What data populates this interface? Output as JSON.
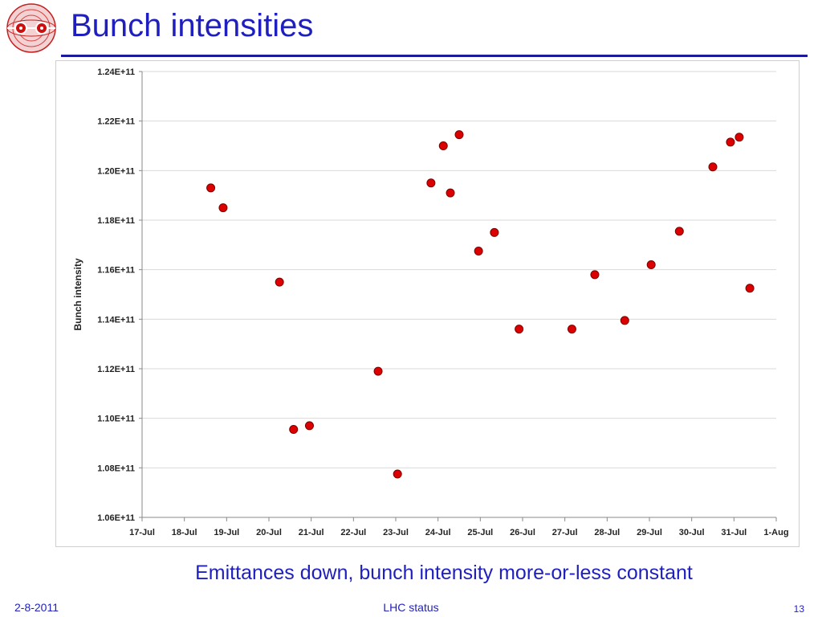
{
  "slide": {
    "title": "Bunch intensities",
    "caption": "Emittances down, bunch intensity more-or-less constant",
    "footer_left": "2-8-2011",
    "footer_center": "LHC status",
    "page_number": "13"
  },
  "colors": {
    "title": "#1f1fbf",
    "rule": "#1a1a9a",
    "point_fill": "#dd0000",
    "grid": "#d9d9d9"
  },
  "chart_data": {
    "type": "scatter",
    "title": "",
    "xlabel": "",
    "ylabel": "Bunch intensity",
    "x_tick_labels": [
      "17-Jul",
      "18-Jul",
      "19-Jul",
      "20-Jul",
      "21-Jul",
      "22-Jul",
      "23-Jul",
      "24-Jul",
      "25-Jul",
      "26-Jul",
      "27-Jul",
      "28-Jul",
      "29-Jul",
      "30-Jul",
      "31-Jul",
      "1-Aug"
    ],
    "y_tick_labels": [
      "1.24E+11",
      "1.22E+11",
      "1.20E+11",
      "1.18E+11",
      "1.16E+11",
      "1.14E+11",
      "1.12E+11",
      "1.10E+11",
      "1.08E+11",
      "1.06E+11"
    ],
    "xlim": [
      "2011-07-17",
      "2011-08-01"
    ],
    "ylim": [
      106000000000.0,
      124000000000.0
    ],
    "grid": true,
    "legend": "none",
    "series": [
      {
        "points": [
          {
            "x": "2011-07-18 15:00",
            "y": 119300000000.0
          },
          {
            "x": "2011-07-18 22:00",
            "y": 118500000000.0
          },
          {
            "x": "2011-07-20 06:00",
            "y": 115500000000.0
          },
          {
            "x": "2011-07-20 14:00",
            "y": 109550000000.0
          },
          {
            "x": "2011-07-20 23:00",
            "y": 109700000000.0
          },
          {
            "x": "2011-07-22 14:00",
            "y": 111900000000.0
          },
          {
            "x": "2011-07-23 01:00",
            "y": 107750000000.0
          },
          {
            "x": "2011-07-23 20:00",
            "y": 119500000000.0
          },
          {
            "x": "2011-07-24 03:00",
            "y": 121000000000.0
          },
          {
            "x": "2011-07-24 07:00",
            "y": 119100000000.0
          },
          {
            "x": "2011-07-24 12:00",
            "y": 121450000000.0
          },
          {
            "x": "2011-07-24 23:00",
            "y": 116750000000.0
          },
          {
            "x": "2011-07-25 08:00",
            "y": 117500000000.0
          },
          {
            "x": "2011-07-25 22:00",
            "y": 113600000000.0
          },
          {
            "x": "2011-07-27 04:00",
            "y": 113600000000.0
          },
          {
            "x": "2011-07-27 17:00",
            "y": 115800000000.0
          },
          {
            "x": "2011-07-28 10:00",
            "y": 113950000000.0
          },
          {
            "x": "2011-07-29 01:00",
            "y": 116200000000.0
          },
          {
            "x": "2011-07-29 17:00",
            "y": 117550000000.0
          },
          {
            "x": "2011-07-30 12:00",
            "y": 120150000000.0
          },
          {
            "x": "2011-07-30 22:00",
            "y": 121150000000.0
          },
          {
            "x": "2011-07-31 03:00",
            "y": 121350000000.0
          },
          {
            "x": "2011-07-31 09:00",
            "y": 115250000000.0
          }
        ]
      }
    ]
  }
}
